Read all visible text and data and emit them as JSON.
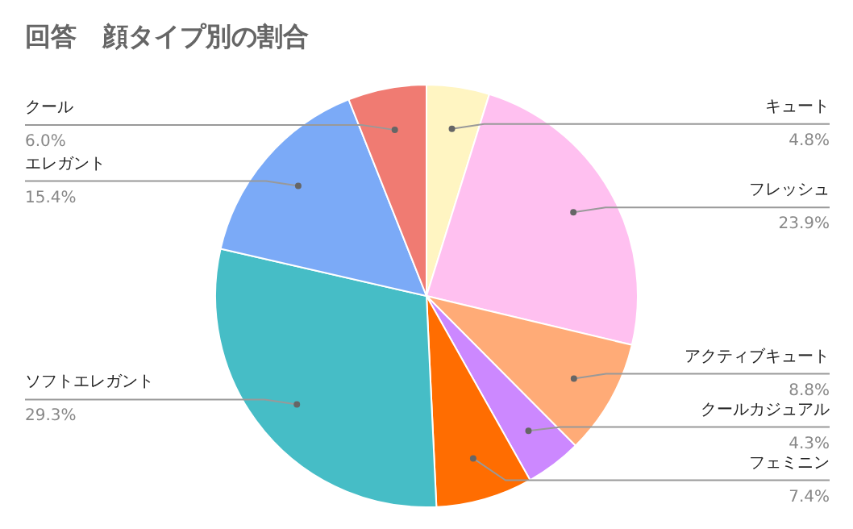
{
  "chart_data": {
    "type": "pie",
    "title": "回答　顔タイプ別の割合",
    "categories": [
      "キュート",
      "フレッシュ",
      "アクティブキュート",
      "クールカジュアル",
      "フェミニン",
      "ソフトエレガント",
      "エレガント",
      "クール"
    ],
    "values": [
      4.8,
      23.9,
      8.8,
      4.3,
      7.4,
      29.3,
      15.4,
      6.0
    ],
    "value_labels": [
      "4.8%",
      "23.9%",
      "8.8%",
      "4.3%",
      "7.4%",
      "29.3%",
      "15.4%",
      "6.0%"
    ],
    "colors": [
      "#fff5c2",
      "#ffc0f0",
      "#ffab77",
      "#cc88ff",
      "#ff6d01",
      "#46bdc6",
      "#7baaf7",
      "#f07b72"
    ]
  }
}
